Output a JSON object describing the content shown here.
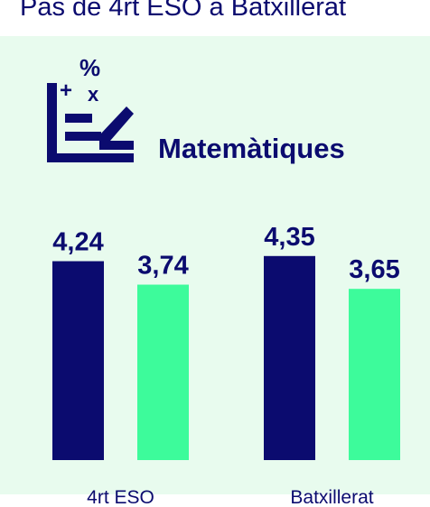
{
  "chart_data": {
    "type": "bar",
    "title": "Pas de 4rt ESO a Batxillerat",
    "subtitle": "Matemàtiques",
    "categories": [
      "4rt ESO",
      "Batxillerat"
    ],
    "series": [
      {
        "color": "#0b0b6f",
        "values": [
          4.24,
          4.35
        ],
        "value_labels": [
          "4,24",
          "4,35"
        ]
      },
      {
        "color": "#3dfb9b",
        "values": [
          3.74,
          3.65
        ],
        "value_labels": [
          "3,74",
          "3,65"
        ]
      }
    ]
  }
}
